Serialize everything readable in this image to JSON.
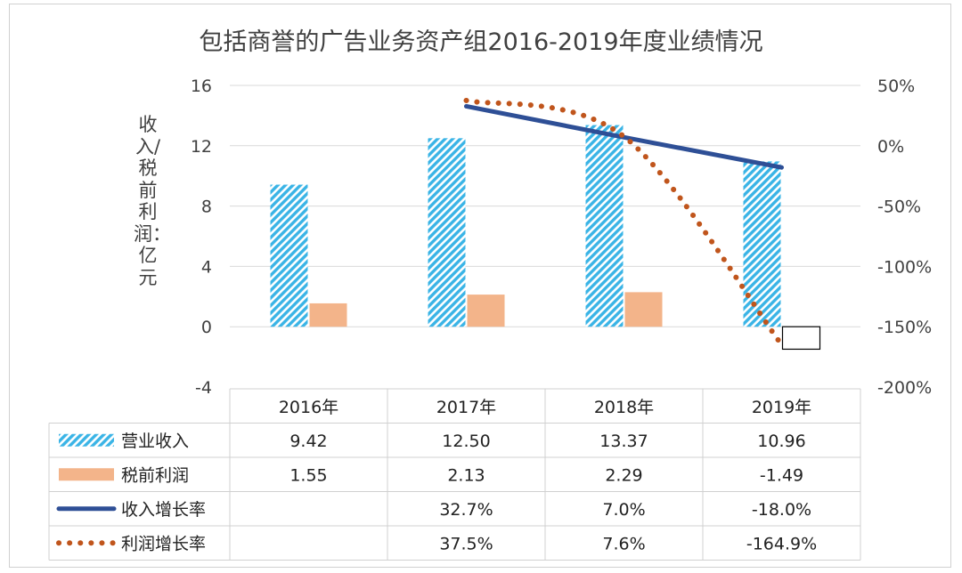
{
  "chart_data": {
    "type": "bar",
    "title": "包括商誉的广告业务资产组2016-2019年度业绩情况",
    "ylabel": "收入/税前利润：亿元",
    "y2label": "",
    "categories": [
      "2016年",
      "2017年",
      "2018年",
      "2019年"
    ],
    "ylim": [
      -4,
      16
    ],
    "y_ticks": [
      "16",
      "12",
      "8",
      "4",
      "0",
      "-4"
    ],
    "y2lim": [
      -200,
      50
    ],
    "y2_ticks": [
      "50%",
      "0%",
      "-50%",
      "-100%",
      "-150%",
      "-200%"
    ],
    "series": [
      {
        "name": "营业收入",
        "kind": "bar",
        "axis": "left",
        "color": "#3ab4e6",
        "values": [
          9.42,
          12.5,
          13.37,
          10.96
        ],
        "labels": [
          "9.42",
          "12.50",
          "13.37",
          "10.96"
        ]
      },
      {
        "name": "税前利润",
        "kind": "bar",
        "axis": "left",
        "color": "#f3b48a",
        "values": [
          1.55,
          2.13,
          2.29,
          -1.49
        ],
        "labels": [
          "1.55",
          "2.13",
          "2.29",
          "-1.49"
        ]
      },
      {
        "name": "收入增长率",
        "kind": "line",
        "axis": "right",
        "color": "#2e4f96",
        "values": [
          null,
          32.7,
          7.0,
          -18.0
        ],
        "labels": [
          "",
          "32.7%",
          "7.0%",
          "-18.0%"
        ]
      },
      {
        "name": "利润增长率",
        "kind": "dotted-line",
        "axis": "right",
        "color": "#c0551c",
        "values": [
          null,
          37.5,
          7.6,
          -164.9
        ],
        "labels": [
          "",
          "37.5%",
          "7.6%",
          "-164.9%"
        ]
      }
    ]
  }
}
